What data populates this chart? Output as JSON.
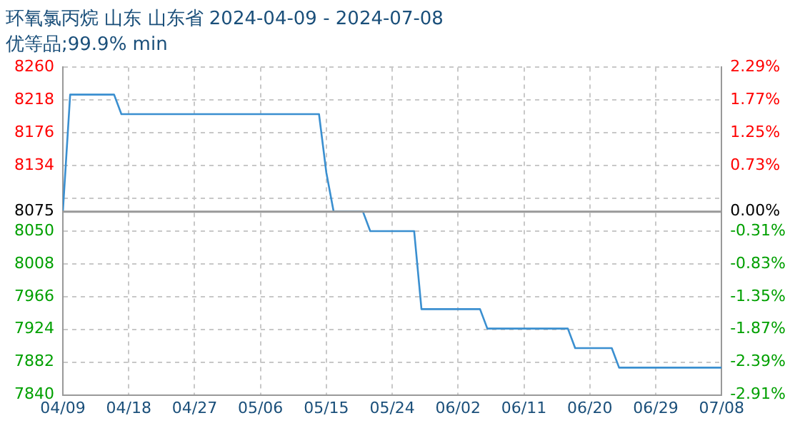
{
  "chart_data": {
    "type": "line",
    "title": "环氧氯丙烷 山东 山东省 2024-04-09 - 2024-07-08",
    "subtitle": "优等品;99.9% min",
    "x": [
      "2024-04-09",
      "2024-04-10",
      "2024-04-16",
      "2024-04-17",
      "2024-05-14",
      "2024-05-15",
      "2024-05-16",
      "2024-05-20",
      "2024-05-21",
      "2024-05-27",
      "2024-05-28",
      "2024-06-05",
      "2024-06-06",
      "2024-06-17",
      "2024-06-18",
      "2024-06-23",
      "2024-06-24",
      "2024-07-08"
    ],
    "series": [
      {
        "color": "#3a8fd0",
        "values": [
          8075,
          8225,
          8225,
          8200,
          8200,
          8125,
          8075,
          8075,
          8050,
          8050,
          7950,
          7950,
          7925,
          7925,
          7900,
          7900,
          7875,
          7875
        ]
      }
    ],
    "xlim": [
      "2024-04-09",
      "2024-07-08"
    ],
    "xticks": [
      {
        "value": "2024-04-09",
        "label": "04/09"
      },
      {
        "value": "2024-04-18",
        "label": "04/18"
      },
      {
        "value": "2024-04-27",
        "label": "04/27"
      },
      {
        "value": "2024-05-06",
        "label": "05/06"
      },
      {
        "value": "2024-05-15",
        "label": "05/15"
      },
      {
        "value": "2024-05-24",
        "label": "05/24"
      },
      {
        "value": "2024-06-02",
        "label": "06/02"
      },
      {
        "value": "2024-06-11",
        "label": "06/11"
      },
      {
        "value": "2024-06-20",
        "label": "06/20"
      },
      {
        "value": "2024-06-29",
        "label": "06/29"
      },
      {
        "value": "2024-07-08",
        "label": "07/08"
      }
    ],
    "ylim": [
      7840,
      8260
    ],
    "yticks": [
      8260,
      8218,
      8176,
      8134,
      {
        "value": 8092,
        "label": null
      },
      8075,
      8050,
      8008,
      7966,
      7924,
      7882,
      7840
    ],
    "y2lim": [
      -2.91,
      2.29
    ],
    "y2ticks": [
      {
        "value": 2.29,
        "label": "2.29%"
      },
      {
        "value": 1.77,
        "label": "1.77%"
      },
      {
        "value": 1.25,
        "label": "1.25%"
      },
      {
        "value": 0.73,
        "label": "0.73%"
      },
      {
        "value": 0,
        "label": "0.00%"
      },
      {
        "value": -0.31,
        "label": "-0.31%"
      },
      {
        "value": -0.83,
        "label": "-0.83%"
      },
      {
        "value": -1.35,
        "label": "-1.35%"
      },
      {
        "value": -1.87,
        "label": "-1.87%"
      },
      {
        "value": -2.39,
        "label": "-2.39%"
      },
      {
        "value": -2.91,
        "label": "-2.91%"
      }
    ],
    "ref_lines": [
      {
        "axis": "y",
        "value": 8075,
        "color": "#999999"
      }
    ],
    "grid": true,
    "legend": false,
    "marker": "none",
    "line_style": "solid"
  }
}
